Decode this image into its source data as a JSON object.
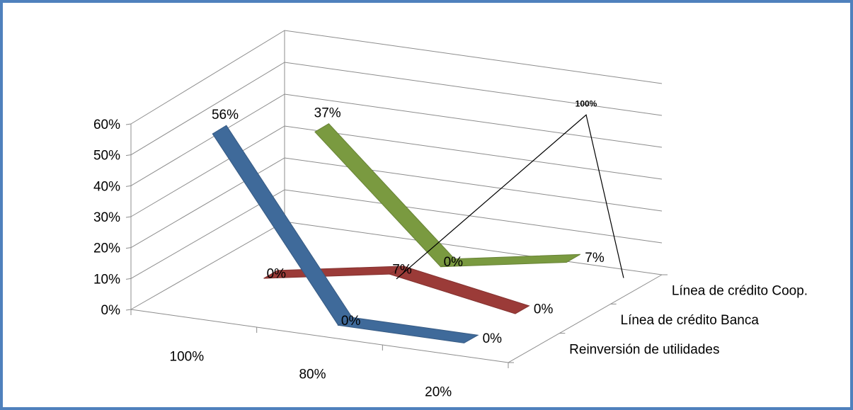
{
  "chart_data": {
    "type": "line",
    "style": "3d",
    "categories": [
      "100%",
      "80%",
      "20%"
    ],
    "series": [
      {
        "name": "Reinversión de utilidades",
        "values": [
          0.56,
          0.0,
          0.0
        ],
        "value_labels": [
          "56%",
          "0%",
          "0%"
        ],
        "color": "#3f6a9a"
      },
      {
        "name": "Línea de crédito Banca",
        "values": [
          0.0,
          0.07,
          0.0
        ],
        "value_labels": [
          "0%",
          "7%",
          "0%"
        ],
        "color": "#9b3b38"
      },
      {
        "name": "Línea de crédito Coop.",
        "values": [
          0.37,
          0.0,
          0.07
        ],
        "value_labels": [
          "37%",
          "0%",
          "7%"
        ],
        "color": "#7a9a40"
      }
    ],
    "y_ticks": [
      "0%",
      "10%",
      "20%",
      "30%",
      "40%",
      "50%",
      "60%"
    ],
    "ylim": [
      0,
      0.6
    ],
    "grid": true,
    "annotation": {
      "text": "100%"
    }
  }
}
